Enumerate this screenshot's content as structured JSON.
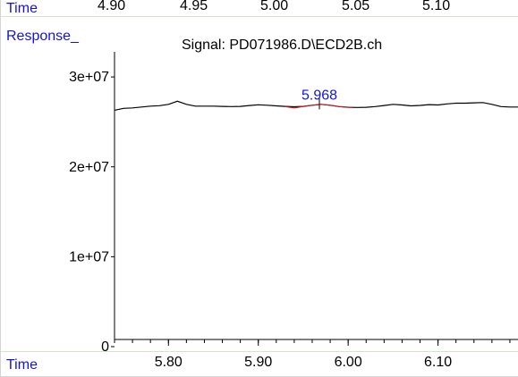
{
  "header": {
    "time_label": "Time",
    "response_label": "Response_",
    "signal_title": "Signal: PD071986.D\\ECD2B.ch",
    "top_time_ticks": [
      "4.90",
      "4.95",
      "5.00",
      "5.05",
      "5.10"
    ]
  },
  "footer": {
    "time_label": "Time"
  },
  "colors": {
    "label_blue": "#1414d6",
    "trace": "#000000",
    "peak": "#c41a1a",
    "separator": "#cfe6cf"
  },
  "chart_data": {
    "type": "line",
    "title": "Signal: PD071986.D\\ECD2B.ch",
    "xlabel": "Time",
    "ylabel": "Response_",
    "xlim": [
      5.74,
      6.19
    ],
    "ylim": [
      0,
      32000000
    ],
    "y_ticks": [
      0,
      10000000,
      20000000,
      30000000
    ],
    "y_tick_labels": [
      "0",
      "1e+07",
      "2e+07",
      "3e+07"
    ],
    "x_ticks": [
      5.8,
      5.9,
      6.0,
      6.1
    ],
    "x_tick_labels": [
      "5.80",
      "5.90",
      "6.00",
      "6.10"
    ],
    "grid": false,
    "series": [
      {
        "x": [
          5.74,
          5.75,
          5.76,
          5.77,
          5.78,
          5.79,
          5.8,
          5.81,
          5.82,
          5.83,
          5.84,
          5.85,
          5.86,
          5.87,
          5.88,
          5.89,
          5.9,
          5.91,
          5.92,
          5.93,
          5.94,
          5.95,
          5.96,
          5.97,
          5.98,
          5.99,
          6.0,
          6.01,
          6.02,
          6.03,
          6.04,
          6.05,
          6.06,
          6.07,
          6.08,
          6.09,
          6.1,
          6.11,
          6.12,
          6.13,
          6.14,
          6.15,
          6.16,
          6.17,
          6.18,
          6.19
        ],
        "values": [
          26300000,
          26500000,
          26550000,
          26650000,
          26750000,
          26800000,
          26950000,
          27300000,
          26950000,
          26750000,
          26750000,
          26750000,
          26720000,
          26700000,
          26720000,
          26820000,
          26900000,
          26850000,
          26780000,
          26720000,
          26680000,
          26720000,
          26850000,
          26950000,
          26850000,
          26700000,
          26620000,
          26600000,
          26620000,
          26700000,
          26820000,
          26950000,
          26880000,
          26780000,
          26830000,
          26920000,
          26880000,
          27000000,
          27080000,
          27080000,
          27120000,
          27150000,
          26950000,
          26700000,
          26650000,
          26650000
        ]
      }
    ],
    "peak": {
      "label": "5.968",
      "apex_x": 5.968,
      "x": [
        5.93,
        5.94,
        5.95,
        5.96,
        5.97,
        5.98,
        5.99,
        6.005
      ],
      "values": [
        26700000,
        26550000,
        26720000,
        26850000,
        26950000,
        26850000,
        26700000,
        26600000
      ]
    }
  }
}
